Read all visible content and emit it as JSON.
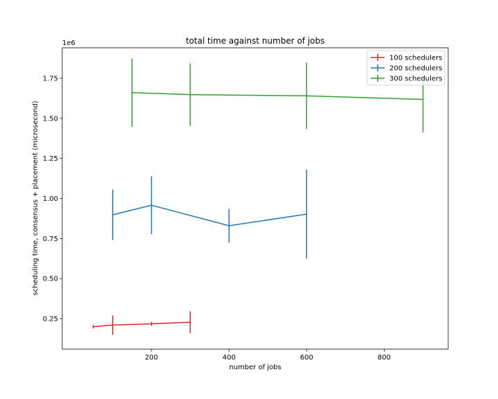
{
  "chart_data": {
    "type": "line",
    "title": "total time against number of jobs",
    "xlabel": "number of jobs",
    "ylabel": "scheduling time, consensus + placement (microsecond)",
    "y_offset_label": "1e6",
    "xlim": [
      -30,
      965
    ],
    "ylim": [
      0.06,
      1.94
    ],
    "xticks": [
      200,
      400,
      600,
      800
    ],
    "yticks": [
      0.25,
      0.5,
      0.75,
      1.0,
      1.25,
      1.5,
      1.75
    ],
    "ytick_labels": [
      "0.25",
      "0.50",
      "0.75",
      "1.00",
      "1.25",
      "1.50",
      "1.75"
    ],
    "grid": false,
    "legend_position": "top-right",
    "series": [
      {
        "name": "100 schedulers",
        "color": "#d62728",
        "points": [
          {
            "x": 50,
            "y": 0.2,
            "err": 0.01
          },
          {
            "x": 100,
            "y": 0.21,
            "err": 0.06
          },
          {
            "x": 200,
            "y": 0.218,
            "err": 0.012
          },
          {
            "x": 300,
            "y": 0.228,
            "err": 0.068
          }
        ]
      },
      {
        "name": "200 schedulers",
        "color": "#1f77b4",
        "points": [
          {
            "x": 100,
            "y": 0.898,
            "err": 0.157
          },
          {
            "x": 200,
            "y": 0.958,
            "err": 0.18
          },
          {
            "x": 400,
            "y": 0.83,
            "err": 0.105
          },
          {
            "x": 600,
            "y": 0.902,
            "err": 0.278
          }
        ]
      },
      {
        "name": "300 schedulers",
        "color": "#2ca02c",
        "points": [
          {
            "x": 150,
            "y": 1.66,
            "err": 0.213
          },
          {
            "x": 300,
            "y": 1.648,
            "err": 0.195
          },
          {
            "x": 600,
            "y": 1.64,
            "err": 0.207
          },
          {
            "x": 900,
            "y": 1.618,
            "err": 0.205
          }
        ]
      }
    ]
  }
}
